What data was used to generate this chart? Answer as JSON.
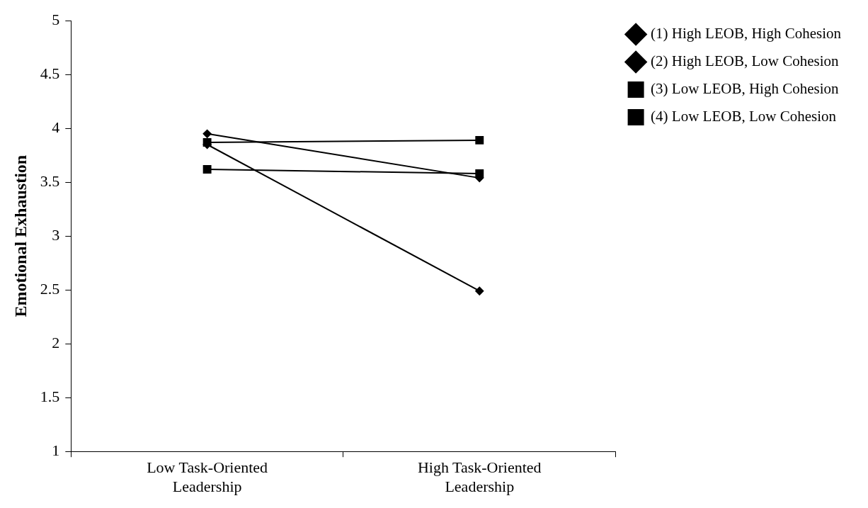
{
  "chart_data": {
    "type": "line",
    "ylabel": "Emotional Exhaustion",
    "categories": [
      "Low Task-Oriented Leadership",
      "High Task-Oriented Leadership"
    ],
    "ylim": [
      1,
      5
    ],
    "yticks": [
      1,
      1.5,
      2,
      2.5,
      3,
      3.5,
      4,
      4.5,
      5
    ],
    "grid": false,
    "legend": "top right",
    "line_style": "solid",
    "series": [
      {
        "name": "(1) High LEOB, High Cohesion",
        "color": "#000000",
        "marker": "diamond",
        "values": [
          3.85,
          2.49
        ]
      },
      {
        "name": "(2) High LEOB, Low Cohesion",
        "color": "#000000",
        "marker": "diamond",
        "values": [
          3.95,
          3.54
        ]
      },
      {
        "name": "(3) Low LEOB, High Cohesion",
        "color": "#000000",
        "marker": "square",
        "values": [
          3.62,
          3.58
        ]
      },
      {
        "name": "(4) Low LEOB, Low Cohesion",
        "color": "#000000",
        "marker": "square",
        "values": [
          3.87,
          3.89
        ]
      }
    ]
  }
}
